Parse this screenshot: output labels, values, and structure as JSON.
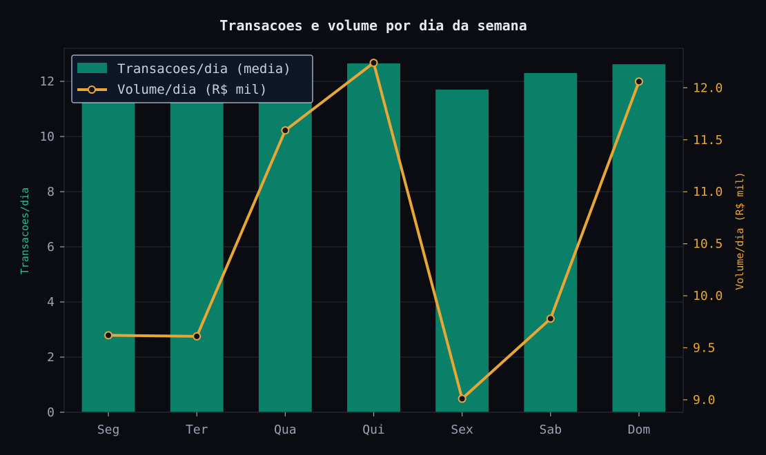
{
  "colors": {
    "background": "#0a0c11",
    "bar": "#0b8069",
    "line": "#e8a636",
    "marker_fill": "#0f1320",
    "grid": "#1f2433",
    "axis_left": "#1fbf9a",
    "axis_right": "#e8a636"
  },
  "chart_data": {
    "type": "bar",
    "title": "Transacoes e volume por dia da semana",
    "categories": [
      "Seg",
      "Ter",
      "Qua",
      "Qui",
      "Sex",
      "Sab",
      "Dom"
    ],
    "series": [
      {
        "name": "Transacoes/dia (media)",
        "type": "bar",
        "axis": "left",
        "values": [
          12.6,
          12.1,
          11.5,
          12.65,
          11.7,
          12.3,
          12.62
        ]
      },
      {
        "name": "Volume/dia (R$ mil)",
        "type": "line",
        "axis": "right",
        "values": [
          9.62,
          9.61,
          11.59,
          12.24,
          9.01,
          9.78,
          12.06
        ]
      }
    ],
    "ylabel_left": "Transacoes/dia",
    "ylabel_right": "Volume/dia (R$ mil)",
    "ylim_left": [
      0,
      13.2
    ],
    "ylim_right": [
      8.88,
      12.38
    ],
    "yticks_left": [
      "0",
      "2",
      "4",
      "6",
      "8",
      "10",
      "12"
    ],
    "yticks_right": [
      "9.0",
      "9.5",
      "10.0",
      "10.5",
      "11.0",
      "11.5",
      "12.0"
    ],
    "grid": true,
    "legend_position": "top-left"
  }
}
